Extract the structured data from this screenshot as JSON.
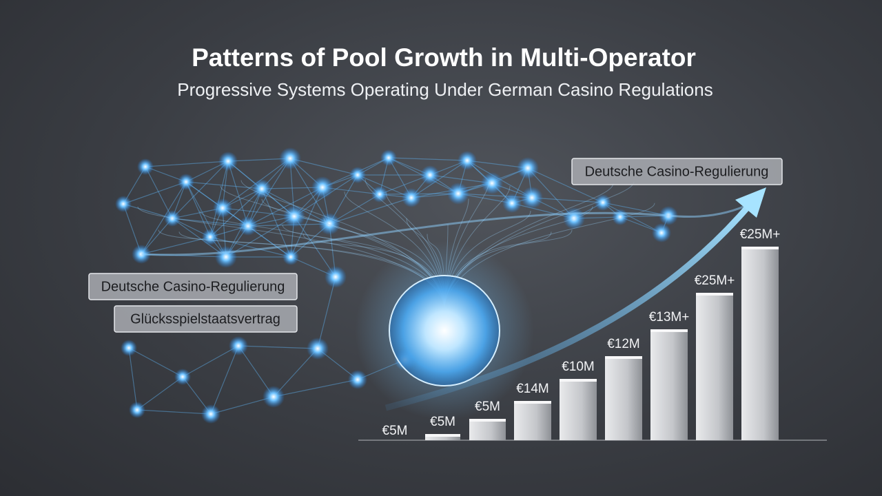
{
  "header": {
    "title": "Patterns of Pool Growth in Multi-Operator",
    "subtitle": "Progressive Systems Operating Under German Casino Regulations"
  },
  "callouts": [
    "Deutsche Casino-Regulierung",
    "Deutsche Casino-Regulierung",
    "Glücksspielstaatsvertrag"
  ],
  "bars": {
    "labels": [
      "€5M",
      "€5M",
      "€5M",
      "€14M",
      "€10M",
      "€12M",
      "€13M+",
      "€25M+",
      "€25M+"
    ]
  }
}
